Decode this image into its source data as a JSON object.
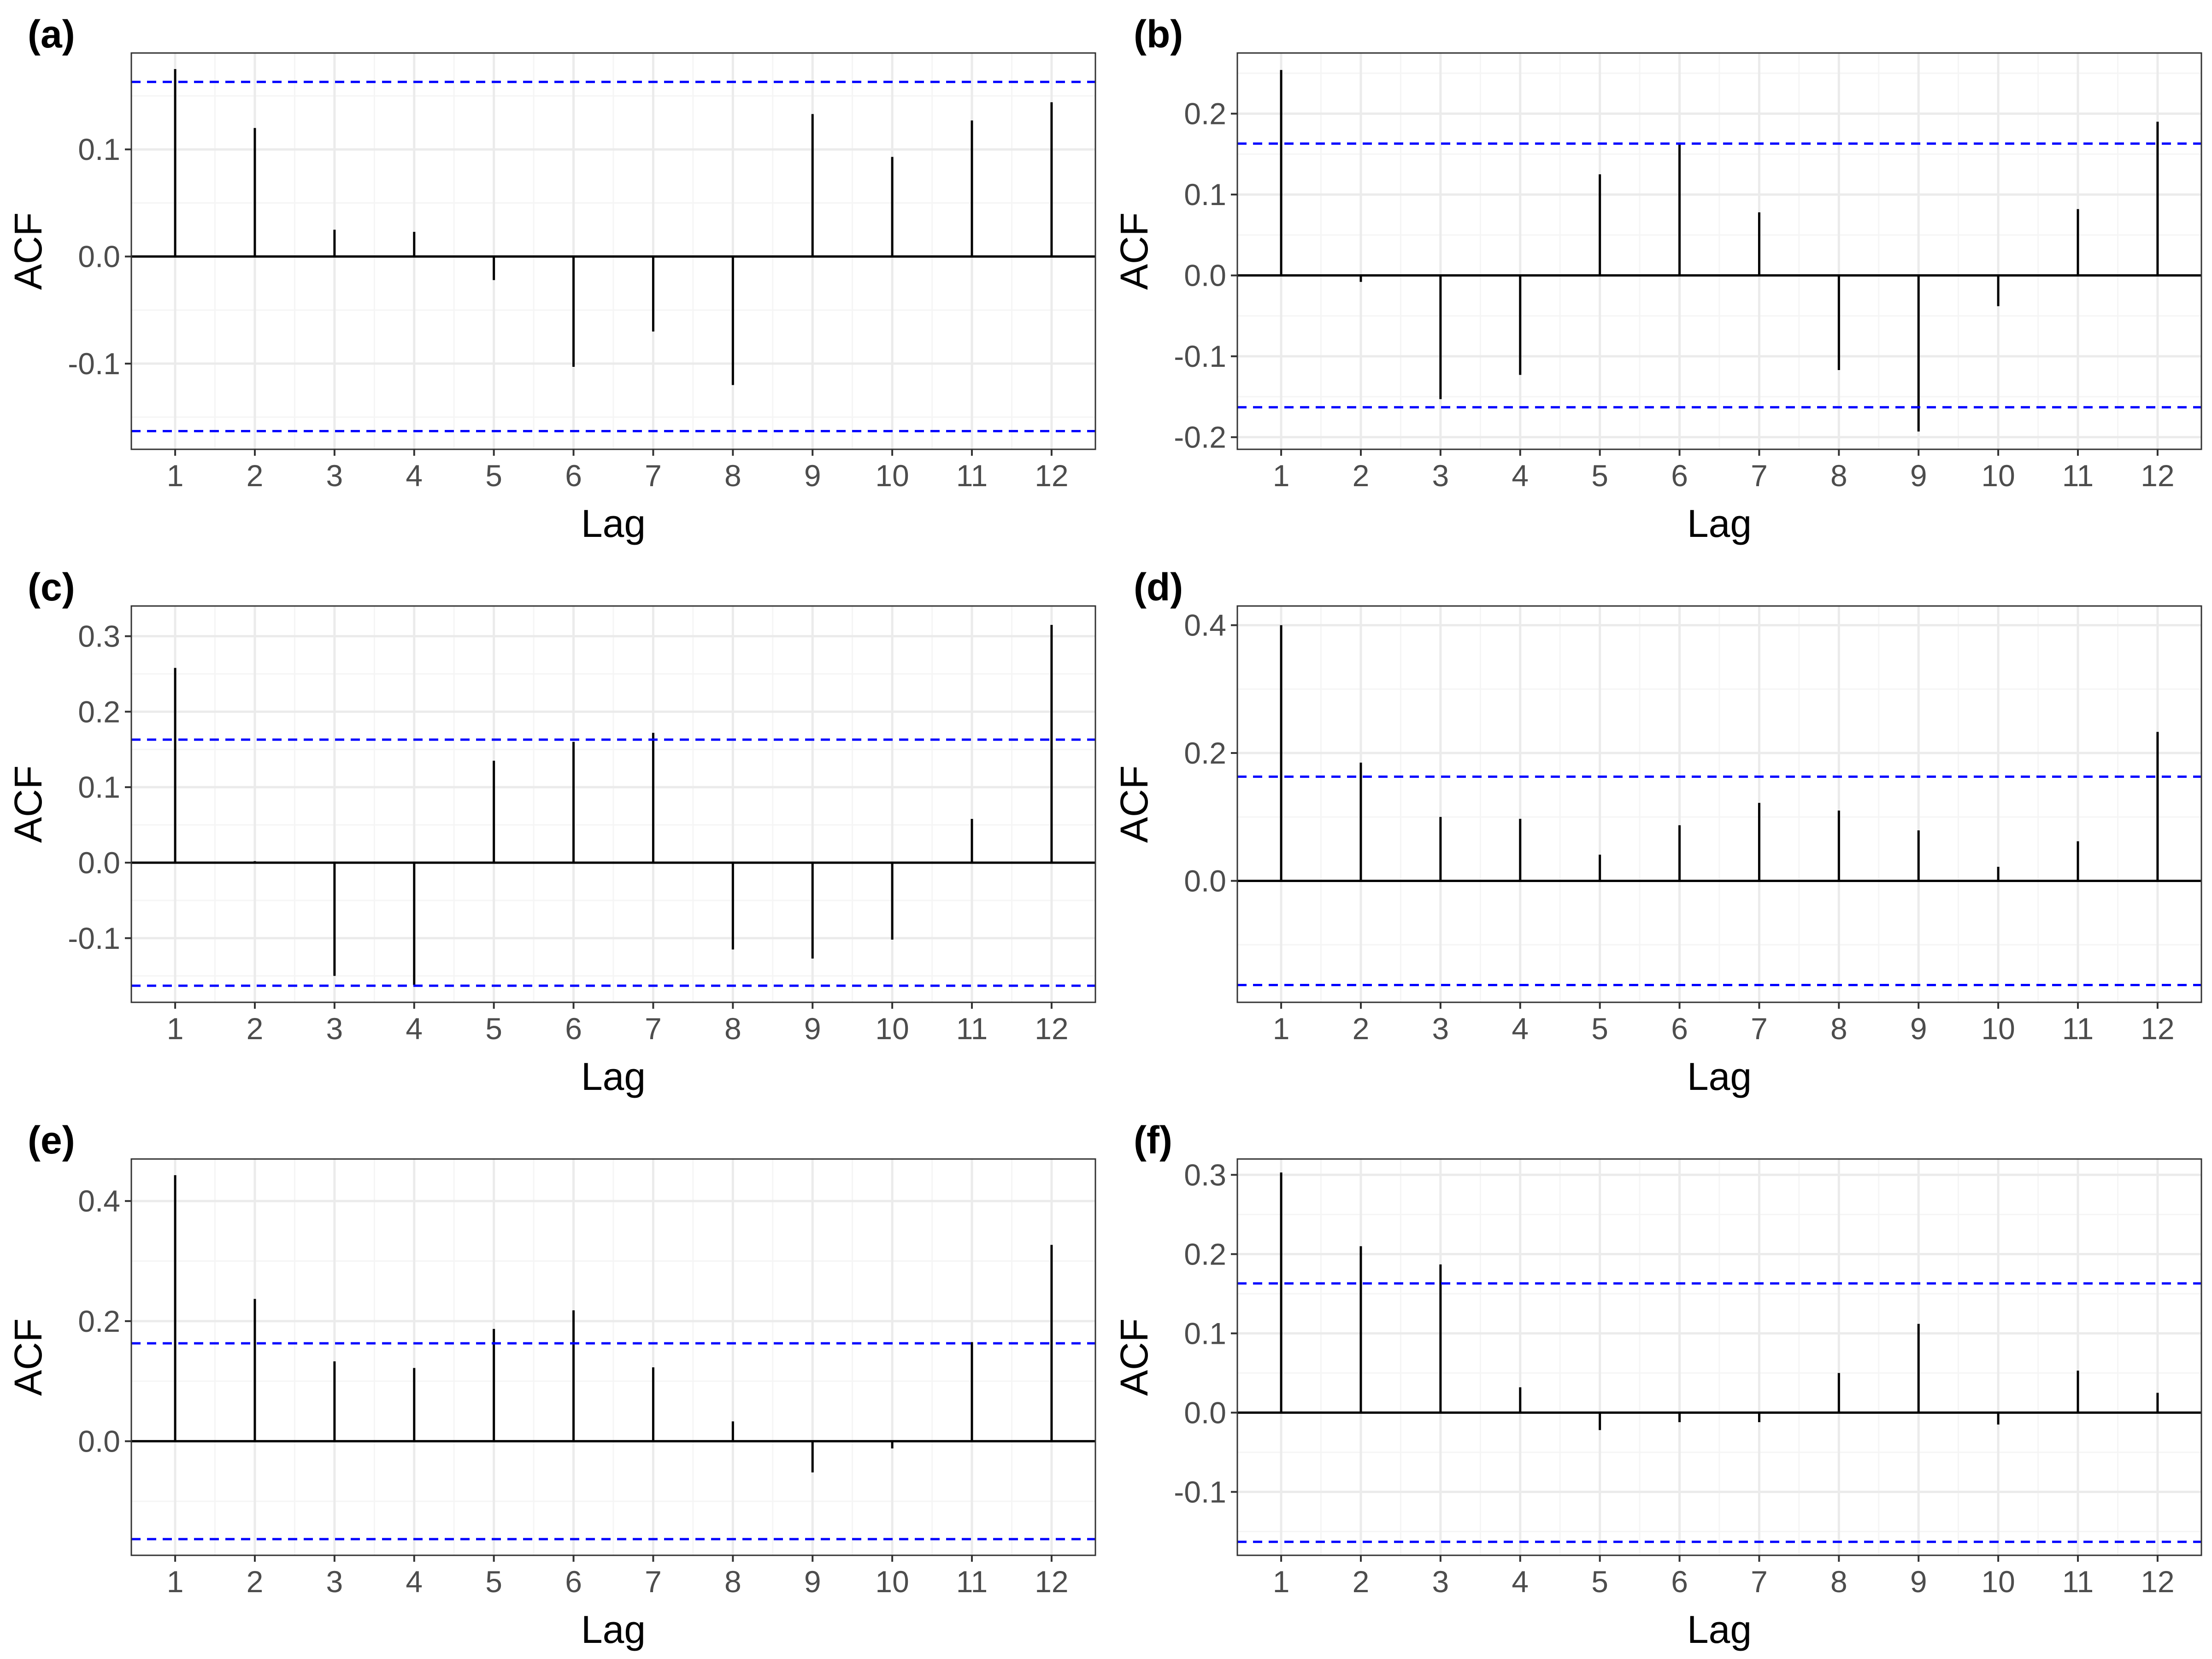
{
  "colors": {
    "confidence_line": "#0000ff",
    "bar": "#000000",
    "grid_major": "#ebebeb",
    "grid_minor": "#f5f5f5",
    "panel_border": "#333333",
    "tick_text": "#4d4d4d"
  },
  "chart_data": [
    {
      "type": "bar",
      "panel_label": "(a)",
      "xlabel": "Lag",
      "ylabel": "ACF",
      "x": [
        1,
        2,
        3,
        4,
        5,
        6,
        7,
        8,
        9,
        10,
        11,
        12
      ],
      "values": [
        0.175,
        0.12,
        0.025,
        0.023,
        -0.022,
        -0.103,
        -0.07,
        -0.12,
        0.133,
        0.093,
        0.127,
        0.144
      ],
      "confidence_bounds": [
        -0.163,
        0.163
      ],
      "ylim": [
        -0.18,
        0.19
      ],
      "yticks": [
        -0.1,
        0.0,
        0.1
      ],
      "ytick_labels": [
        "-0.1",
        "0.0",
        "0.1"
      ],
      "xlim": [
        0.45,
        12.55
      ],
      "grid": true
    },
    {
      "type": "bar",
      "panel_label": "(b)",
      "xlabel": "Lag",
      "ylabel": "ACF",
      "x": [
        1,
        2,
        3,
        4,
        5,
        6,
        7,
        8,
        9,
        10,
        11,
        12
      ],
      "values": [
        0.254,
        -0.008,
        -0.153,
        -0.123,
        0.125,
        0.163,
        0.078,
        -0.117,
        -0.193,
        -0.038,
        0.082,
        0.19
      ],
      "confidence_bounds": [
        -0.163,
        0.163
      ],
      "ylim": [
        -0.215,
        0.275
      ],
      "yticks": [
        -0.2,
        -0.1,
        0.0,
        0.1,
        0.2
      ],
      "ytick_labels": [
        "-0.2",
        "-0.1",
        "0.0",
        "0.1",
        "0.2"
      ],
      "xlim": [
        0.45,
        12.55
      ],
      "grid": true
    },
    {
      "type": "bar",
      "panel_label": "(c)",
      "xlabel": "Lag",
      "ylabel": "ACF",
      "x": [
        1,
        2,
        3,
        4,
        5,
        6,
        7,
        8,
        9,
        10,
        11,
        12
      ],
      "values": [
        0.258,
        0.002,
        -0.15,
        -0.162,
        0.135,
        0.16,
        0.172,
        -0.115,
        -0.127,
        -0.102,
        0.058,
        0.315
      ],
      "confidence_bounds": [
        -0.163,
        0.163
      ],
      "ylim": [
        -0.185,
        0.34
      ],
      "yticks": [
        -0.1,
        0.0,
        0.1,
        0.2,
        0.3
      ],
      "ytick_labels": [
        "-0.1",
        "0.0",
        "0.1",
        "0.2",
        "0.3"
      ],
      "xlim": [
        0.45,
        12.55
      ],
      "grid": true
    },
    {
      "type": "bar",
      "panel_label": "(d)",
      "xlabel": "Lag",
      "ylabel": "ACF",
      "x": [
        1,
        2,
        3,
        4,
        5,
        6,
        7,
        8,
        9,
        10,
        11,
        12
      ],
      "values": [
        0.4,
        0.185,
        0.1,
        0.097,
        0.041,
        0.087,
        0.122,
        0.11,
        0.079,
        0.022,
        0.062,
        0.233
      ],
      "confidence_bounds": [
        -0.163,
        0.163
      ],
      "ylim": [
        -0.19,
        0.43
      ],
      "yticks": [
        0.0,
        0.2,
        0.4
      ],
      "ytick_labels": [
        "0.0",
        "0.2",
        "0.4"
      ],
      "xlim": [
        0.45,
        12.55
      ],
      "grid": true
    },
    {
      "type": "bar",
      "panel_label": "(e)",
      "xlabel": "Lag",
      "ylabel": "ACF",
      "x": [
        1,
        2,
        3,
        4,
        5,
        6,
        7,
        8,
        9,
        10,
        11,
        12
      ],
      "values": [
        0.443,
        0.237,
        0.133,
        0.122,
        0.187,
        0.218,
        0.123,
        0.033,
        -0.052,
        -0.012,
        0.165,
        0.327
      ],
      "confidence_bounds": [
        -0.163,
        0.163
      ],
      "ylim": [
        -0.19,
        0.47
      ],
      "yticks": [
        0.0,
        0.2,
        0.4
      ],
      "ytick_labels": [
        "0.0",
        "0.2",
        "0.4"
      ],
      "xlim": [
        0.45,
        12.55
      ],
      "grid": true
    },
    {
      "type": "bar",
      "panel_label": "(f)",
      "xlabel": "Lag",
      "ylabel": "ACF",
      "x": [
        1,
        2,
        3,
        4,
        5,
        6,
        7,
        8,
        9,
        10,
        11,
        12
      ],
      "values": [
        0.303,
        0.21,
        0.187,
        0.032,
        -0.022,
        -0.012,
        -0.012,
        0.05,
        0.112,
        -0.015,
        0.053,
        0.025
      ],
      "confidence_bounds": [
        -0.163,
        0.163
      ],
      "ylim": [
        -0.18,
        0.32
      ],
      "yticks": [
        -0.1,
        0.0,
        0.1,
        0.2,
        0.3
      ],
      "ytick_labels": [
        "-0.1",
        "0.0",
        "0.1",
        "0.2",
        "0.3"
      ],
      "xlim": [
        0.45,
        12.55
      ],
      "grid": true
    }
  ]
}
